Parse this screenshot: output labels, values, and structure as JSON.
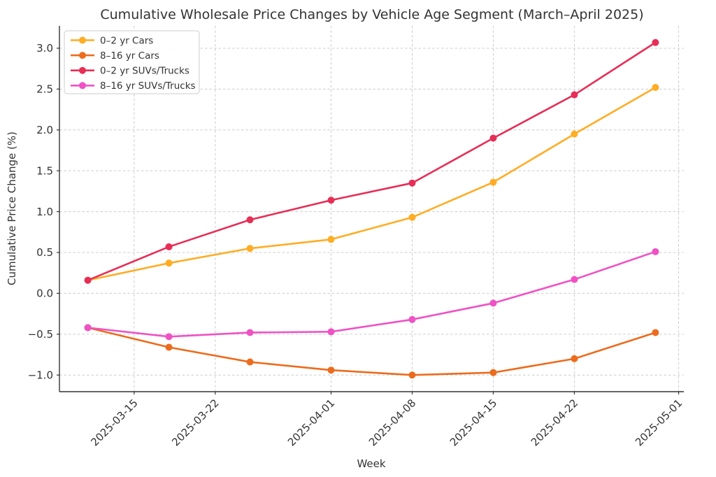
{
  "chart_data": {
    "type": "line",
    "title": "Cumulative Wholesale Price Changes by Vehicle Age Segment (March–April 2025)",
    "xlabel": "Week",
    "ylabel": "Cumulative Price Change (%)",
    "grid": true,
    "legend_position": "upper-left",
    "x_dates": [
      "2025-03-11",
      "2025-03-18",
      "2025-03-25",
      "2025-04-01",
      "2025-04-08",
      "2025-04-15",
      "2025-04-22",
      "2025-04-29"
    ],
    "x_ticks": [
      "2025-03-15",
      "2025-03-22",
      "2025-04-01",
      "2025-04-08",
      "2025-04-15",
      "2025-04-22",
      "2025-05-01"
    ],
    "y_ticks": [
      -1.0,
      -0.5,
      0.0,
      0.5,
      1.0,
      1.5,
      2.0,
      2.5,
      3.0
    ],
    "ylim": [
      -1.2,
      3.27
    ],
    "series": [
      {
        "name": "0–2 yr Cars",
        "color": "#ffad24",
        "values": [
          0.16,
          0.37,
          0.55,
          0.66,
          0.93,
          1.36,
          1.95,
          2.52
        ]
      },
      {
        "name": "8–16 yr Cars",
        "color": "#ec6c1d",
        "values": [
          -0.42,
          -0.66,
          -0.84,
          -0.94,
          -1.0,
          -0.97,
          -0.8,
          -0.48
        ]
      },
      {
        "name": "0–2 yr SUVs/Trucks",
        "color": "#e62e56",
        "values": [
          0.16,
          0.57,
          0.9,
          1.14,
          1.35,
          1.9,
          2.43,
          3.07
        ]
      },
      {
        "name": "8–16 yr SUVs/Trucks",
        "color": "#ef52c5",
        "values": [
          -0.42,
          -0.53,
          -0.48,
          -0.47,
          -0.32,
          -0.12,
          0.17,
          0.51
        ]
      }
    ],
    "style": {
      "grid_color": "#cccccc",
      "spine_color": "#343434",
      "text_color": "#333333",
      "background": "#ffffff",
      "legend_border": "#cccccc"
    }
  }
}
